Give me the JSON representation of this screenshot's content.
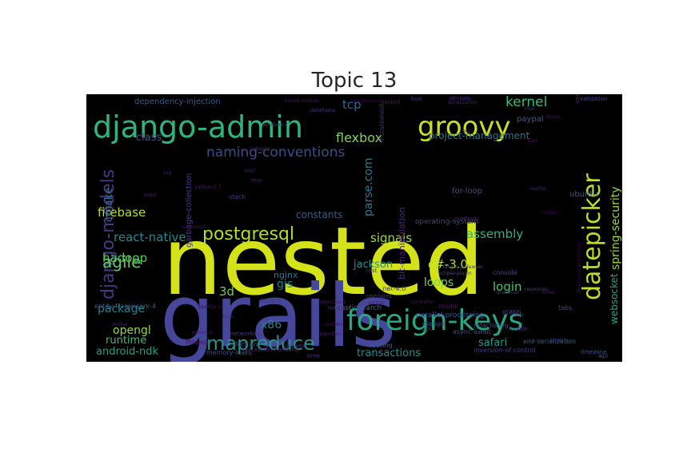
{
  "title": "Topic 13",
  "words": [
    {
      "text": "nested",
      "color": "#d4e21a"
    },
    {
      "text": "grails",
      "color": "#46479a"
    },
    {
      "text": "django-admin",
      "color": "#2fb47c"
    },
    {
      "text": "foreign-keys",
      "color": "#27a883"
    },
    {
      "text": "groovy",
      "color": "#c8e020"
    },
    {
      "text": "datepicker",
      "color": "#b9de28"
    },
    {
      "text": "mapreduce",
      "color": "#2a9187"
    },
    {
      "text": "postgresql",
      "color": "#b2dd2d"
    },
    {
      "text": "django-models",
      "color": "#443a83"
    },
    {
      "text": "agile",
      "color": "#5ec962"
    },
    {
      "text": "naming-conventions",
      "color": "#3d4d8a"
    },
    {
      "text": "spring-security",
      "color": "#9bd93c"
    },
    {
      "text": "flexbox",
      "color": "#7fd34e"
    },
    {
      "text": "kernel",
      "color": "#38b977"
    },
    {
      "text": "tcp",
      "color": "#31688e"
    },
    {
      "text": "firebase",
      "color": "#b5de2b"
    },
    {
      "text": "react-native",
      "color": "#23898e"
    },
    {
      "text": "signals",
      "color": "#9fda3a"
    },
    {
      "text": "assembly",
      "color": "#2db27d"
    },
    {
      "text": "parse.com",
      "color": "#2a788e"
    },
    {
      "text": "hadoop",
      "color": "#5cc863"
    },
    {
      "text": "c#-3.0",
      "color": "#b8de29"
    },
    {
      "text": "login",
      "color": "#4ac16d"
    },
    {
      "text": "loops",
      "color": "#7ad151"
    },
    {
      "text": "gis",
      "color": "#25838e"
    },
    {
      "text": "3d",
      "color": "#73d056"
    },
    {
      "text": "jackson",
      "color": "#21918c"
    },
    {
      "text": "websocket",
      "color": "#22a785"
    },
    {
      "text": "package",
      "color": "#26828e"
    },
    {
      "text": "opengl",
      "color": "#95d840"
    },
    {
      "text": "runtime",
      "color": "#3fbc73"
    },
    {
      "text": "android-ndk",
      "color": "#1fa088"
    },
    {
      "text": "x86",
      "color": "#277f8e"
    },
    {
      "text": "nginx",
      "color": "#2c728e"
    },
    {
      "text": "transactions",
      "color": "#20928c"
    },
    {
      "text": "safari",
      "color": "#1e9b8a"
    },
    {
      "text": "cmake",
      "color": "#2d708e"
    },
    {
      "text": "class",
      "color": "#3b528b"
    },
    {
      "text": "constants",
      "color": "#355f8d"
    },
    {
      "text": "project-management",
      "color": "#2c728e"
    },
    {
      "text": "dependency-injection",
      "color": "#375a8c"
    },
    {
      "text": "garbage-collection",
      "color": "#433e85"
    },
    {
      "text": "paypal",
      "color": "#365d8d"
    },
    {
      "text": "ubuntu",
      "color": "#3b528b"
    },
    {
      "text": "for-loop",
      "color": "#3e4989"
    },
    {
      "text": "elasticsearch",
      "color": "#30698e"
    },
    {
      "text": "operating-system",
      "color": "#3f4788"
    },
    {
      "text": "bit-manipulation",
      "color": "#482576"
    },
    {
      "text": "console",
      "color": "#414487"
    },
    {
      "text": "parallel-processing",
      "color": "#3a538b"
    },
    {
      "text": "refactoring",
      "color": "#3c508b"
    },
    {
      "text": "routing",
      "color": "#375b8d"
    },
    {
      "text": "fortran",
      "color": "#3c4f8a"
    },
    {
      "text": "entity-framework-4",
      "color": "#33628d"
    },
    {
      "text": "xml-serialization",
      "color": "#33638d"
    },
    {
      "text": "tabs",
      "color": "#3e4a89"
    },
    {
      "text": "api",
      "color": "#3b518b"
    },
    {
      "text": "timezone",
      "color": "#3a548c"
    },
    {
      "text": "stack",
      "color": "#433d84"
    },
    {
      "text": "grapn",
      "color": "#404688"
    },
    {
      "text": "model",
      "color": "#481668"
    },
    {
      "text": "memory-leaks",
      "color": "#3e4a89"
    },
    {
      "text": "django",
      "color": "#3f4889"
    },
    {
      "text": "double",
      "color": "#453781"
    },
    {
      "text": "ssis",
      "color": "#472f7d"
    },
    {
      "text": "validation",
      "color": "#404588"
    },
    {
      "text": "jquery-ui",
      "color": "#470d60"
    },
    {
      "text": "opengles",
      "color": "#46327e"
    },
    {
      "text": "webgl",
      "color": "#482677"
    },
    {
      "text": "networking",
      "color": "#46307e"
    },
    {
      "text": "ios",
      "color": "#472a7a"
    },
    {
      "text": "mobile",
      "color": "#481f71"
    },
    {
      "text": "if-statement",
      "color": "#472d7b"
    },
    {
      "text": "haskell",
      "color": "#481a6c"
    },
    {
      "text": "flask",
      "color": "#472c7a"
    },
    {
      "text": "pthreads",
      "color": "#46307e"
    },
    {
      "text": "ffmpeg",
      "color": "#481467"
    },
    {
      "text": "mkdir",
      "color": "#482071"
    },
    {
      "text": "gpu",
      "color": "#472e7c"
    },
    {
      "text": "rest",
      "color": "#46337f"
    },
    {
      "text": "methods",
      "color": "#482172"
    },
    {
      "text": "xml",
      "color": "#481c6e"
    },
    {
      "text": "mvc",
      "color": "#481769"
    },
    {
      "text": "kernel-module",
      "color": "#471365"
    },
    {
      "text": "async-await",
      "color": "#3e4c8a"
    },
    {
      "text": "inversion-of-control",
      "color": "#423f85"
    },
    {
      "text": "time",
      "color": "#46317e"
    },
    {
      "text": "singleton",
      "color": "#45377f"
    },
    {
      "text": "svg",
      "color": "#481b6d"
    },
    {
      "text": "grammar",
      "color": "#423f85"
    },
    {
      "text": "docker",
      "color": "#481f70"
    },
    {
      "text": "linker",
      "color": "#48186a"
    },
    {
      "text": "reactjs",
      "color": "#482374"
    },
    {
      "text": "resources",
      "color": "#433e85"
    },
    {
      "text": "amazon-ec2",
      "color": "#440256"
    },
    {
      "text": "amazon-web-services",
      "color": "#440154"
    },
    {
      "text": "controller",
      "color": "#481769"
    },
    {
      "text": "language-lawyer",
      "color": "#3f4889"
    },
    {
      "text": "lisp",
      "color": "#482475"
    },
    {
      "text": "gcc",
      "color": "#482979"
    },
    {
      "text": "cakephp",
      "color": "#482878"
    },
    {
      "text": "eclipse-plugin",
      "color": "#3e4989"
    },
    {
      "text": "string-formatting",
      "color": "#472c7a"
    },
    {
      "text": "python-2.7",
      "color": "#481a6c"
    },
    {
      "text": "char",
      "color": "#45347f"
    },
    {
      "text": "windows-7",
      "color": "#443983"
    },
    {
      "text": "order",
      "color": "#48186a"
    },
    {
      "text": "binding",
      "color": "#472a7a"
    },
    {
      "text": "nodes",
      "color": "#450559"
    },
    {
      "text": "objective-c",
      "color": "#481a6c"
    },
    {
      "text": ".net-4.0",
      "color": "#46307e"
    },
    {
      "text": "algorithm",
      "color": "#481b6d"
    },
    {
      "text": "exception-handling",
      "color": "#482878"
    },
    {
      "text": "dataframe",
      "color": "#45347f"
    },
    {
      "text": "ajax",
      "color": "#471063"
    },
    {
      "text": "arrays",
      "color": "#460a5d"
    },
    {
      "text": "sockets",
      "color": "#470e61"
    },
    {
      "text": "generics",
      "color": "#48196b"
    },
    {
      "text": "serialization",
      "color": "#482173"
    },
    {
      "text": "autowired",
      "color": "#471164"
    }
  ]
}
